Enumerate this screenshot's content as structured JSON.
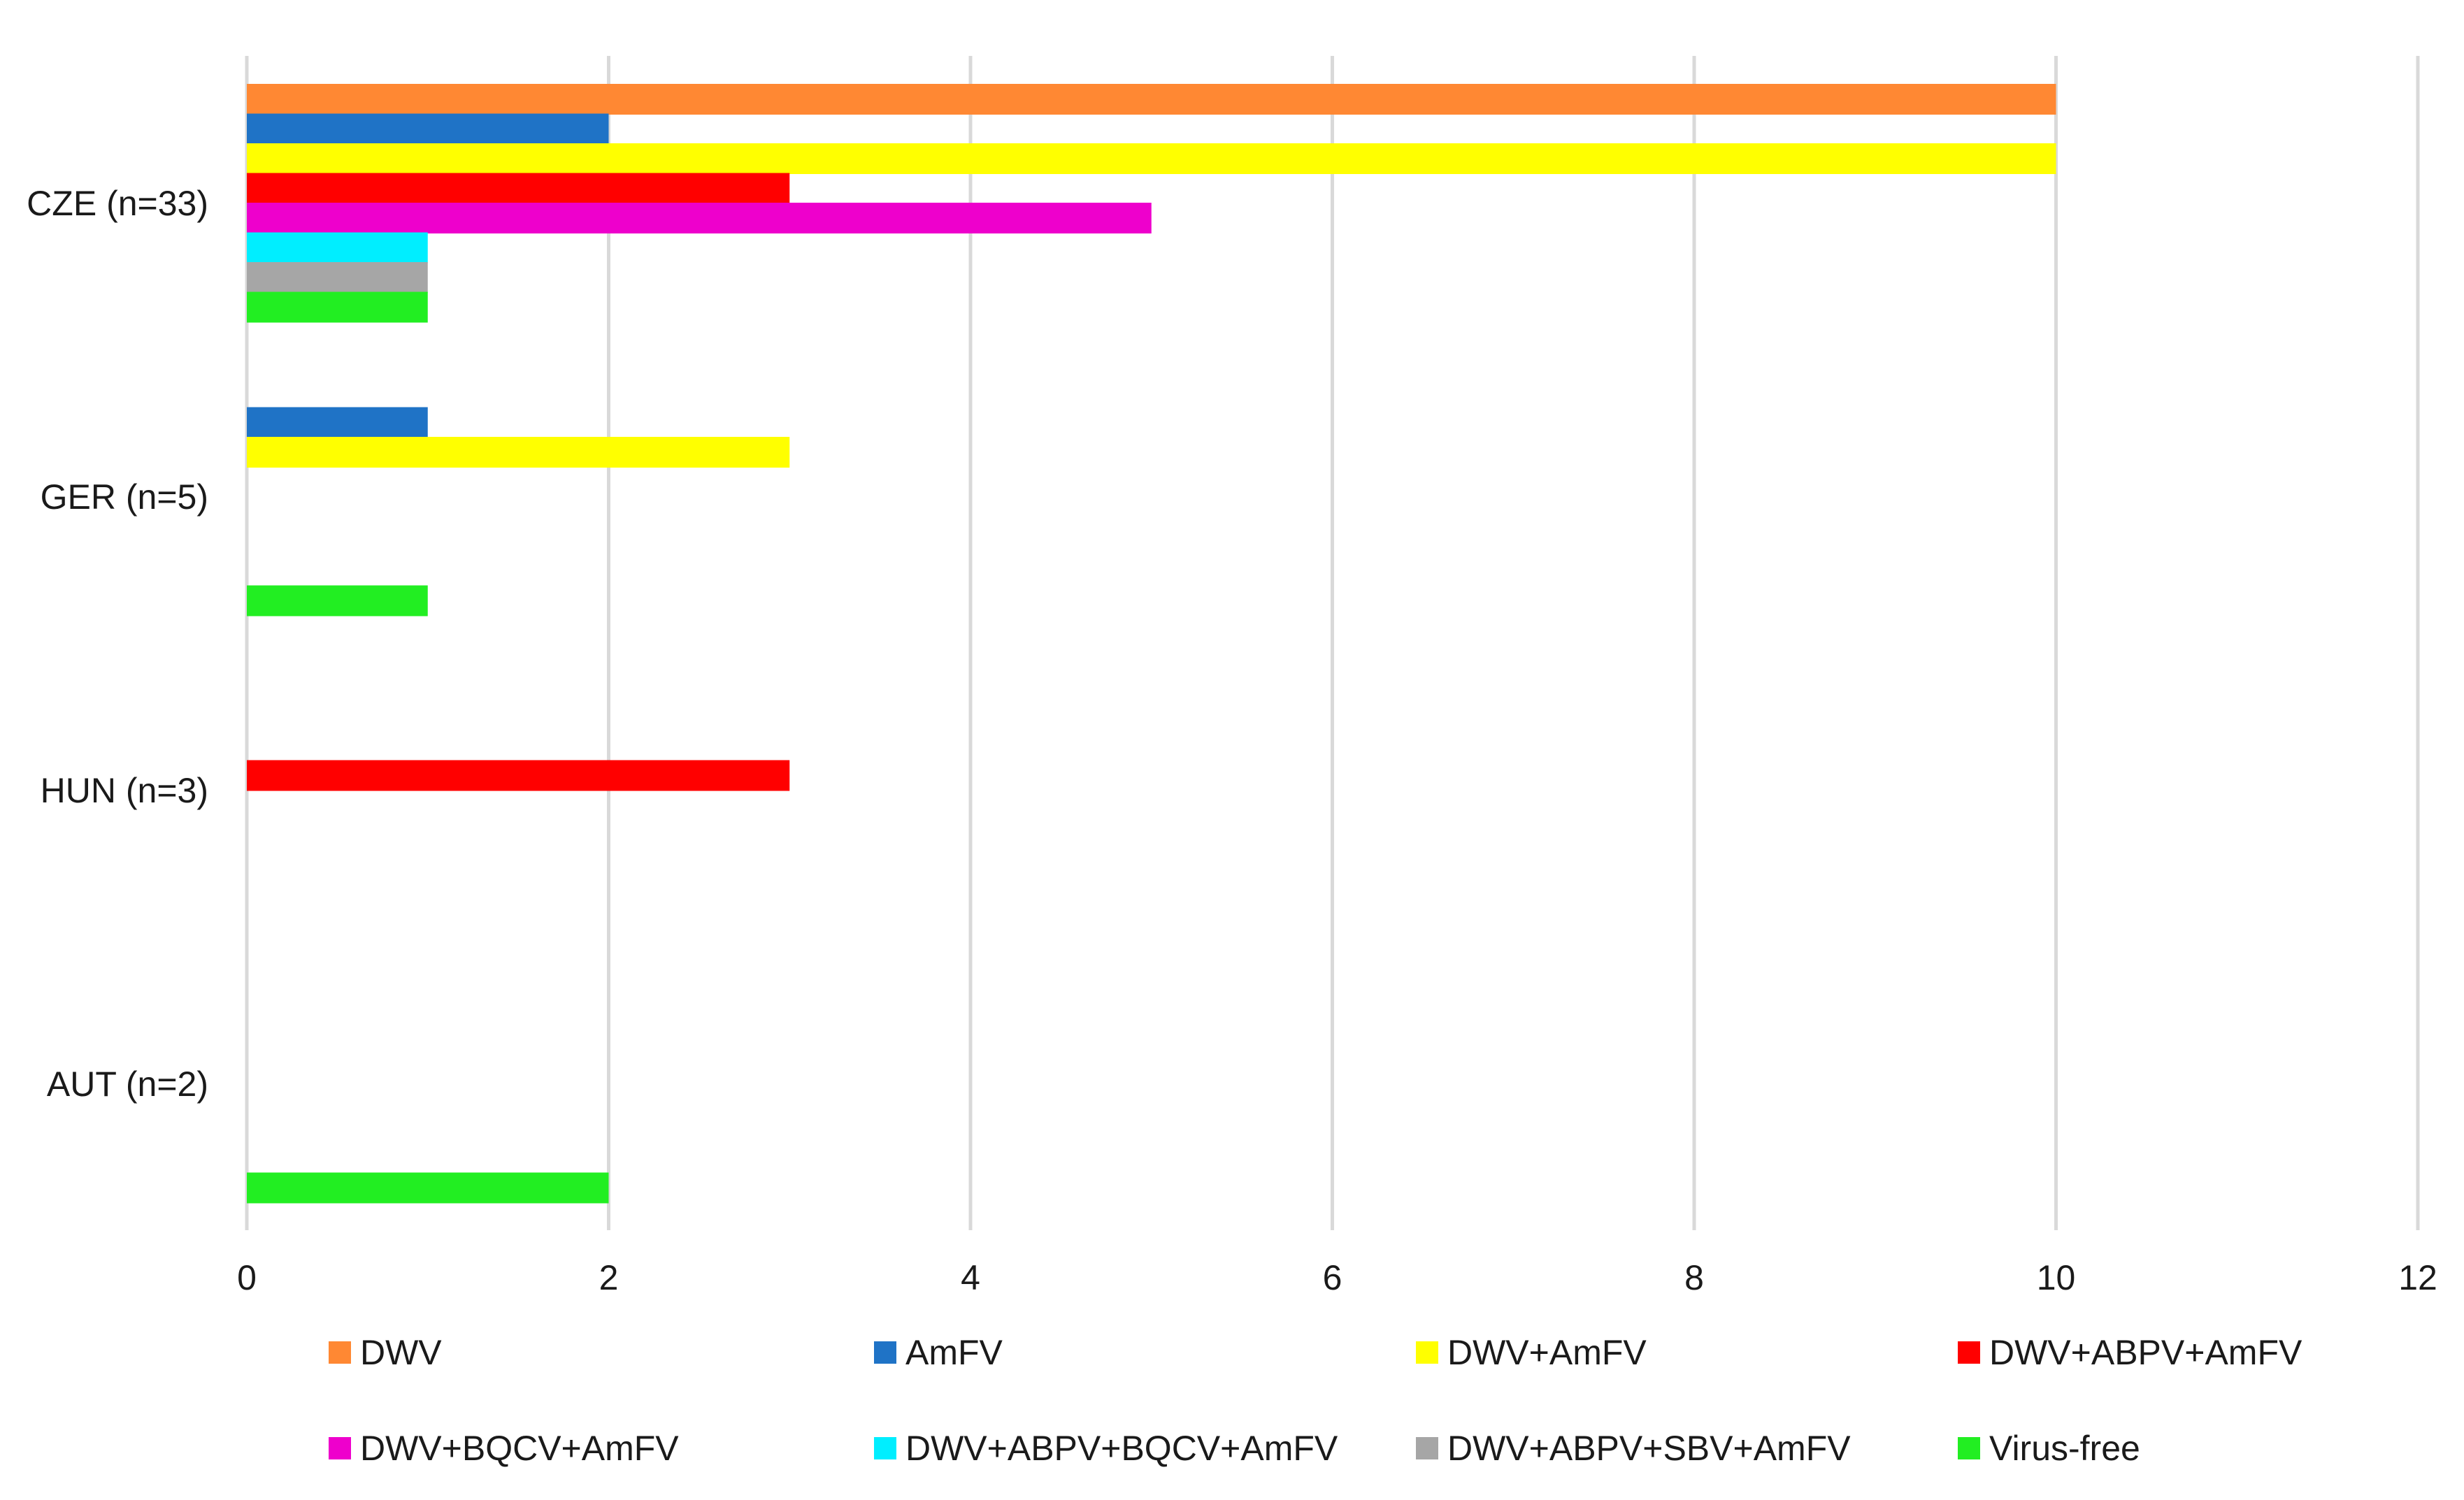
{
  "chart_data": {
    "type": "bar",
    "orientation": "horizontal",
    "categories": [
      "CZE (n=33)",
      "GER (n=5)",
      "HUN (n=3)",
      "AUT (n=2)"
    ],
    "xlim": [
      0,
      12
    ],
    "x_ticks": [
      "0",
      "2",
      "4",
      "6",
      "8",
      "10",
      "12"
    ],
    "grid": "vertical",
    "legend_placement": "bottom",
    "series": [
      {
        "name": "DWV",
        "color": "#FF8833",
        "values": [
          10,
          0,
          0,
          0
        ]
      },
      {
        "name": "AmFV",
        "color": "#1F73C6",
        "values": [
          2,
          1,
          0,
          0
        ]
      },
      {
        "name": "DWV+AmFV",
        "color": "#FFFF00",
        "values": [
          10,
          3,
          0,
          0
        ]
      },
      {
        "name": "DWV+ABPV+AmFV",
        "color": "#FF0000",
        "values": [
          3,
          0,
          3,
          0
        ]
      },
      {
        "name": "DWV+BQCV+AmFV",
        "color": "#EE00CC",
        "values": [
          5,
          0,
          0,
          0
        ]
      },
      {
        "name": "DWV+ABPV+BQCV+AmFV",
        "color": "#00EEFF",
        "values": [
          1,
          0,
          0,
          0
        ]
      },
      {
        "name": "DWV+ABPV+SBV+AmFV",
        "color": "#A6A6A6",
        "values": [
          1,
          0,
          0,
          0
        ]
      },
      {
        "name": "Virus-free",
        "color": "#22EE22",
        "values": [
          1,
          1,
          0,
          2
        ]
      }
    ]
  }
}
